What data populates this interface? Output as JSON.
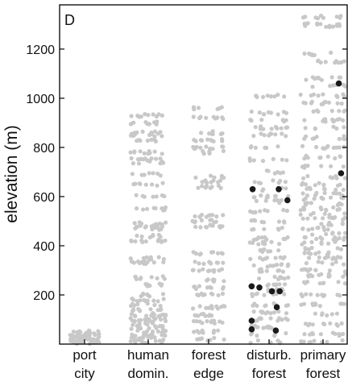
{
  "chart_data": {
    "type": "scatter",
    "panel_label": "D",
    "xlabel": "",
    "ylabel": "elevation (m)",
    "ylim": [
      0,
      1380
    ],
    "yticks": [
      200,
      400,
      600,
      800,
      1000,
      1200
    ],
    "grid": false,
    "categories": [
      {
        "line1": "port",
        "line2": "city"
      },
      {
        "line1": "human",
        "line2": "domin."
      },
      {
        "line1": "forest",
        "line2": "edge"
      },
      {
        "line1": "disturb.",
        "line2": "forest"
      },
      {
        "line1": "primary",
        "line2": "forest"
      }
    ],
    "colors": {
      "background_points": "#c8c8c8",
      "highlight_points": "#1a1a1a",
      "axis": "#000000"
    },
    "series": [
      {
        "role": "background",
        "clusters": [
          {
            "category": 0,
            "y_values": [
              5,
              10,
              15,
              20,
              25,
              30,
              40,
              50
            ]
          },
          {
            "category": 1,
            "y_values": [
              10,
              20,
              30,
              40,
              50,
              60,
              70,
              80,
              90,
              100,
              110,
              120,
              140,
              160,
              180,
              200,
              240,
              270,
              330,
              350,
              420,
              440,
              470,
              480,
              490,
              550,
              600,
              650,
              690,
              740,
              750,
              780,
              830,
              850,
              860,
              900,
              930
            ]
          },
          {
            "category": 2,
            "y_values": [
              20,
              50,
              90,
              120,
              150,
              200,
              230,
              260,
              300,
              330,
              370,
              480,
              500,
              520,
              640,
              660,
              680,
              780,
              800,
              830,
              860,
              920,
              960
            ]
          },
          {
            "category": 3,
            "y_values": [
              10,
              40,
              70,
              100,
              130,
              160,
              200,
              220,
              240,
              270,
              300,
              320,
              350,
              380,
              410,
              430,
              470,
              500,
              540,
              580,
              600,
              630,
              660,
              700,
              750,
              800,
              850,
              880,
              910,
              940,
              1010
            ]
          },
          {
            "category": 4,
            "y_values": [
              10,
              40,
              80,
              120,
              160,
              200,
              250,
              280,
              300,
              330,
              350,
              370,
              390,
              410,
              430,
              450,
              470,
              490,
              510,
              530,
              550,
              570,
              590,
              610,
              630,
              650,
              680,
              720,
              760,
              800,
              840,
              880,
              910,
              950,
              980,
              1010,
              1050,
              1080,
              1150,
              1180,
              1290,
              1300,
              1330
            ]
          }
        ]
      },
      {
        "role": "highlighted",
        "points": [
          {
            "category": 3,
            "y": 630
          },
          {
            "category": 3,
            "y": 630
          },
          {
            "category": 3,
            "y": 585
          },
          {
            "category": 3,
            "y": 235
          },
          {
            "category": 3,
            "y": 230
          },
          {
            "category": 3,
            "y": 215
          },
          {
            "category": 3,
            "y": 215
          },
          {
            "category": 3,
            "y": 150
          },
          {
            "category": 3,
            "y": 95
          },
          {
            "category": 3,
            "y": 60
          },
          {
            "category": 3,
            "y": 55
          },
          {
            "category": 4,
            "y": 1060
          },
          {
            "category": 4,
            "y": 695
          }
        ]
      }
    ]
  }
}
